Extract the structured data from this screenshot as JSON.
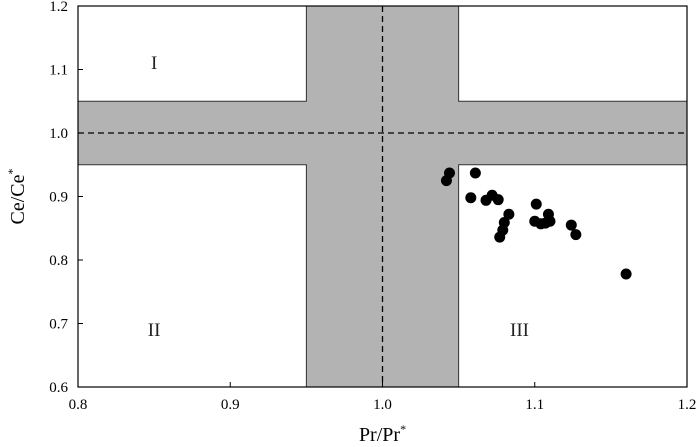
{
  "chart_data": {
    "type": "scatter",
    "xlabel": "Pr/Pr",
    "xlabel_sup": "*",
    "ylabel": "Ce/Ce",
    "ylabel_sup": "*",
    "xlim": [
      0.8,
      1.2
    ],
    "ylim": [
      0.6,
      1.2
    ],
    "xticks": [
      0.8,
      0.9,
      1.0,
      1.1,
      1.2
    ],
    "xtick_labels": [
      "0.8",
      "0.9",
      "1.0",
      "1.1",
      "1.2"
    ],
    "yticks": [
      0.6,
      0.7,
      0.8,
      0.9,
      1.0,
      1.1,
      1.2
    ],
    "ytick_labels": [
      "0.6",
      "0.7",
      "0.8",
      "0.9",
      "1.0",
      "1.1",
      "1.2"
    ],
    "reference_lines": {
      "x": 1.0,
      "y": 1.0,
      "style": "dashed"
    },
    "shaded_bands": {
      "color": "#b3b3b3",
      "vertical": {
        "x_from": 0.95,
        "x_to": 1.05
      },
      "horizontal": {
        "y_from": 0.95,
        "y_to": 1.05
      }
    },
    "regions": [
      {
        "label": "I",
        "x": 0.85,
        "y": 1.11
      },
      {
        "label": "II",
        "x": 0.85,
        "y": 0.69
      },
      {
        "label": "III",
        "x": 1.09,
        "y": 0.69
      }
    ],
    "marker_color": "#000000",
    "points": [
      {
        "x": 1.042,
        "y": 0.925
      },
      {
        "x": 1.044,
        "y": 0.937
      },
      {
        "x": 1.058,
        "y": 0.898
      },
      {
        "x": 1.061,
        "y": 0.937
      },
      {
        "x": 1.068,
        "y": 0.894
      },
      {
        "x": 1.072,
        "y": 0.902
      },
      {
        "x": 1.076,
        "y": 0.895
      },
      {
        "x": 1.077,
        "y": 0.836
      },
      {
        "x": 1.079,
        "y": 0.847
      },
      {
        "x": 1.08,
        "y": 0.859
      },
      {
        "x": 1.083,
        "y": 0.872
      },
      {
        "x": 1.1,
        "y": 0.861
      },
      {
        "x": 1.101,
        "y": 0.888
      },
      {
        "x": 1.104,
        "y": 0.857
      },
      {
        "x": 1.107,
        "y": 0.858
      },
      {
        "x": 1.109,
        "y": 0.872
      },
      {
        "x": 1.11,
        "y": 0.861
      },
      {
        "x": 1.124,
        "y": 0.855
      },
      {
        "x": 1.127,
        "y": 0.84
      },
      {
        "x": 1.16,
        "y": 0.778
      }
    ]
  }
}
